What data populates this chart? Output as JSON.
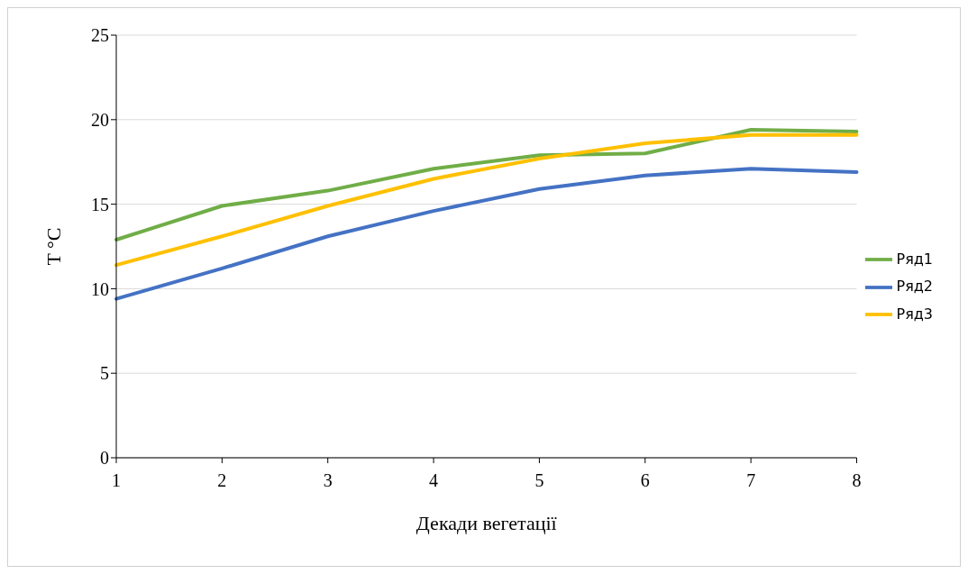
{
  "chart_data": {
    "type": "line",
    "xlabel": "Декади вегетації",
    "ylabel": "T °C",
    "categories": [
      "1",
      "2",
      "3",
      "4",
      "5",
      "6",
      "7",
      "8"
    ],
    "series": [
      {
        "name": "Ряд1",
        "color": "#70ad47",
        "values": [
          12.9,
          14.9,
          15.8,
          17.1,
          17.9,
          18.0,
          19.4,
          19.3
        ]
      },
      {
        "name": "Ряд2",
        "color": "#4472c4",
        "values": [
          9.4,
          11.2,
          13.1,
          14.6,
          15.9,
          16.7,
          17.1,
          16.9
        ]
      },
      {
        "name": "Ряд3",
        "color": "#ffc000",
        "values": [
          11.4,
          13.1,
          14.9,
          16.5,
          17.7,
          18.6,
          19.1,
          19.1
        ]
      }
    ],
    "ylim": [
      0,
      25
    ],
    "yticks": [
      0,
      5,
      10,
      15,
      20,
      25
    ],
    "grid": "y",
    "legend": "right",
    "marker": "none",
    "line_style": "solid"
  }
}
